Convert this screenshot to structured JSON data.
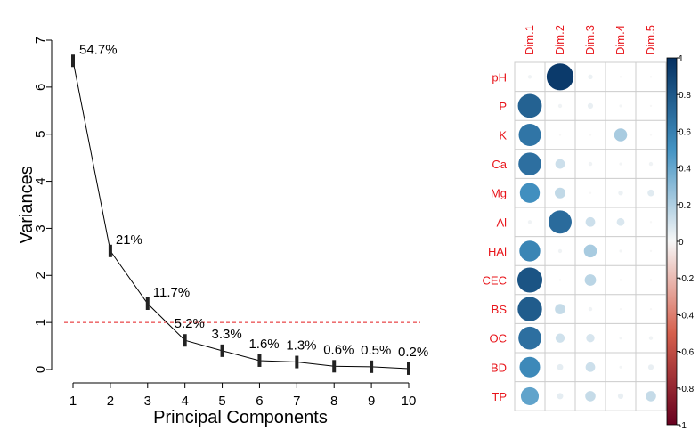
{
  "chart_data": [
    {
      "type": "line",
      "title": "",
      "xlabel": "Principal Components",
      "ylabel": "Variances",
      "x": [
        1,
        2,
        3,
        4,
        5,
        6,
        7,
        8,
        9,
        10
      ],
      "x_tick_labels": [
        "1",
        "2",
        "3",
        "4",
        "5",
        "6",
        "7",
        "8",
        "9",
        "10"
      ],
      "y_tick_labels": [
        "0",
        "1",
        "2",
        "3",
        "4",
        "5",
        "6",
        "7"
      ],
      "series": [
        {
          "values": [
            6.56,
            2.52,
            1.4,
            0.62,
            0.4,
            0.19,
            0.16,
            0.07,
            0.06,
            0.02
          ]
        }
      ],
      "point_labels": [
        "54.7%",
        "21%",
        "11.7%",
        "5.2%",
        "3.3%",
        "1.6%",
        "1.3%",
        "0.6%",
        "0.5%",
        "0.2%"
      ],
      "xlim": [
        0.9,
        10.1
      ],
      "ylim": [
        0,
        7
      ],
      "reference_line": {
        "y": 1,
        "style": "dashed",
        "color": "#e41a1c"
      },
      "grid": false,
      "line_color": "#000000"
    },
    {
      "type": "heatmap",
      "title": "",
      "rows": [
        "pH",
        "P",
        "K",
        "Ca",
        "Mg",
        "Al",
        "HAl",
        "CEC",
        "BS",
        "OC",
        "BD",
        "TP"
      ],
      "columns": [
        "Dim.1",
        "Dim.2",
        "Dim.3",
        "Dim.4",
        "Dim.5"
      ],
      "values": [
        [
          0.02,
          0.95,
          0.03,
          0.0,
          0.0
        ],
        [
          0.75,
          0.02,
          0.04,
          0.01,
          0.0
        ],
        [
          0.65,
          0.0,
          0.0,
          0.22,
          0.0
        ],
        [
          0.68,
          0.12,
          0.02,
          0.01,
          0.02
        ],
        [
          0.52,
          0.15,
          0.0,
          0.03,
          0.06
        ],
        [
          0.02,
          0.7,
          0.12,
          0.08,
          0.0
        ],
        [
          0.57,
          0.02,
          0.22,
          0.01,
          0.0
        ],
        [
          0.82,
          0.0,
          0.17,
          0.0,
          0.0
        ],
        [
          0.78,
          0.14,
          0.02,
          0.0,
          0.0
        ],
        [
          0.68,
          0.11,
          0.09,
          0.01,
          0.02
        ],
        [
          0.55,
          0.05,
          0.12,
          0.01,
          0.04
        ],
        [
          0.42,
          0.05,
          0.14,
          0.04,
          0.14
        ]
      ],
      "scale_range": [
        -1,
        1
      ],
      "colorbar_ticks": [
        "1",
        "0.8",
        "0.6",
        "0.4",
        "0.2",
        "0",
        "-0.2",
        "-0.4",
        "-0.6",
        "-0.8",
        "-1"
      ],
      "colorbar_tick_values": [
        1,
        0.8,
        0.6,
        0.4,
        0.2,
        0,
        -0.2,
        -0.4,
        -0.6,
        -0.8,
        -1
      ],
      "colors": {
        "label": "#e8141a",
        "grid": "#cccccc",
        "positive_max": "#053061",
        "positive_mid": "#4393c3",
        "neutral": "#f7f7f7",
        "negative_mid": "#d6604d",
        "negative_max": "#67001f"
      },
      "legend": "right"
    }
  ]
}
